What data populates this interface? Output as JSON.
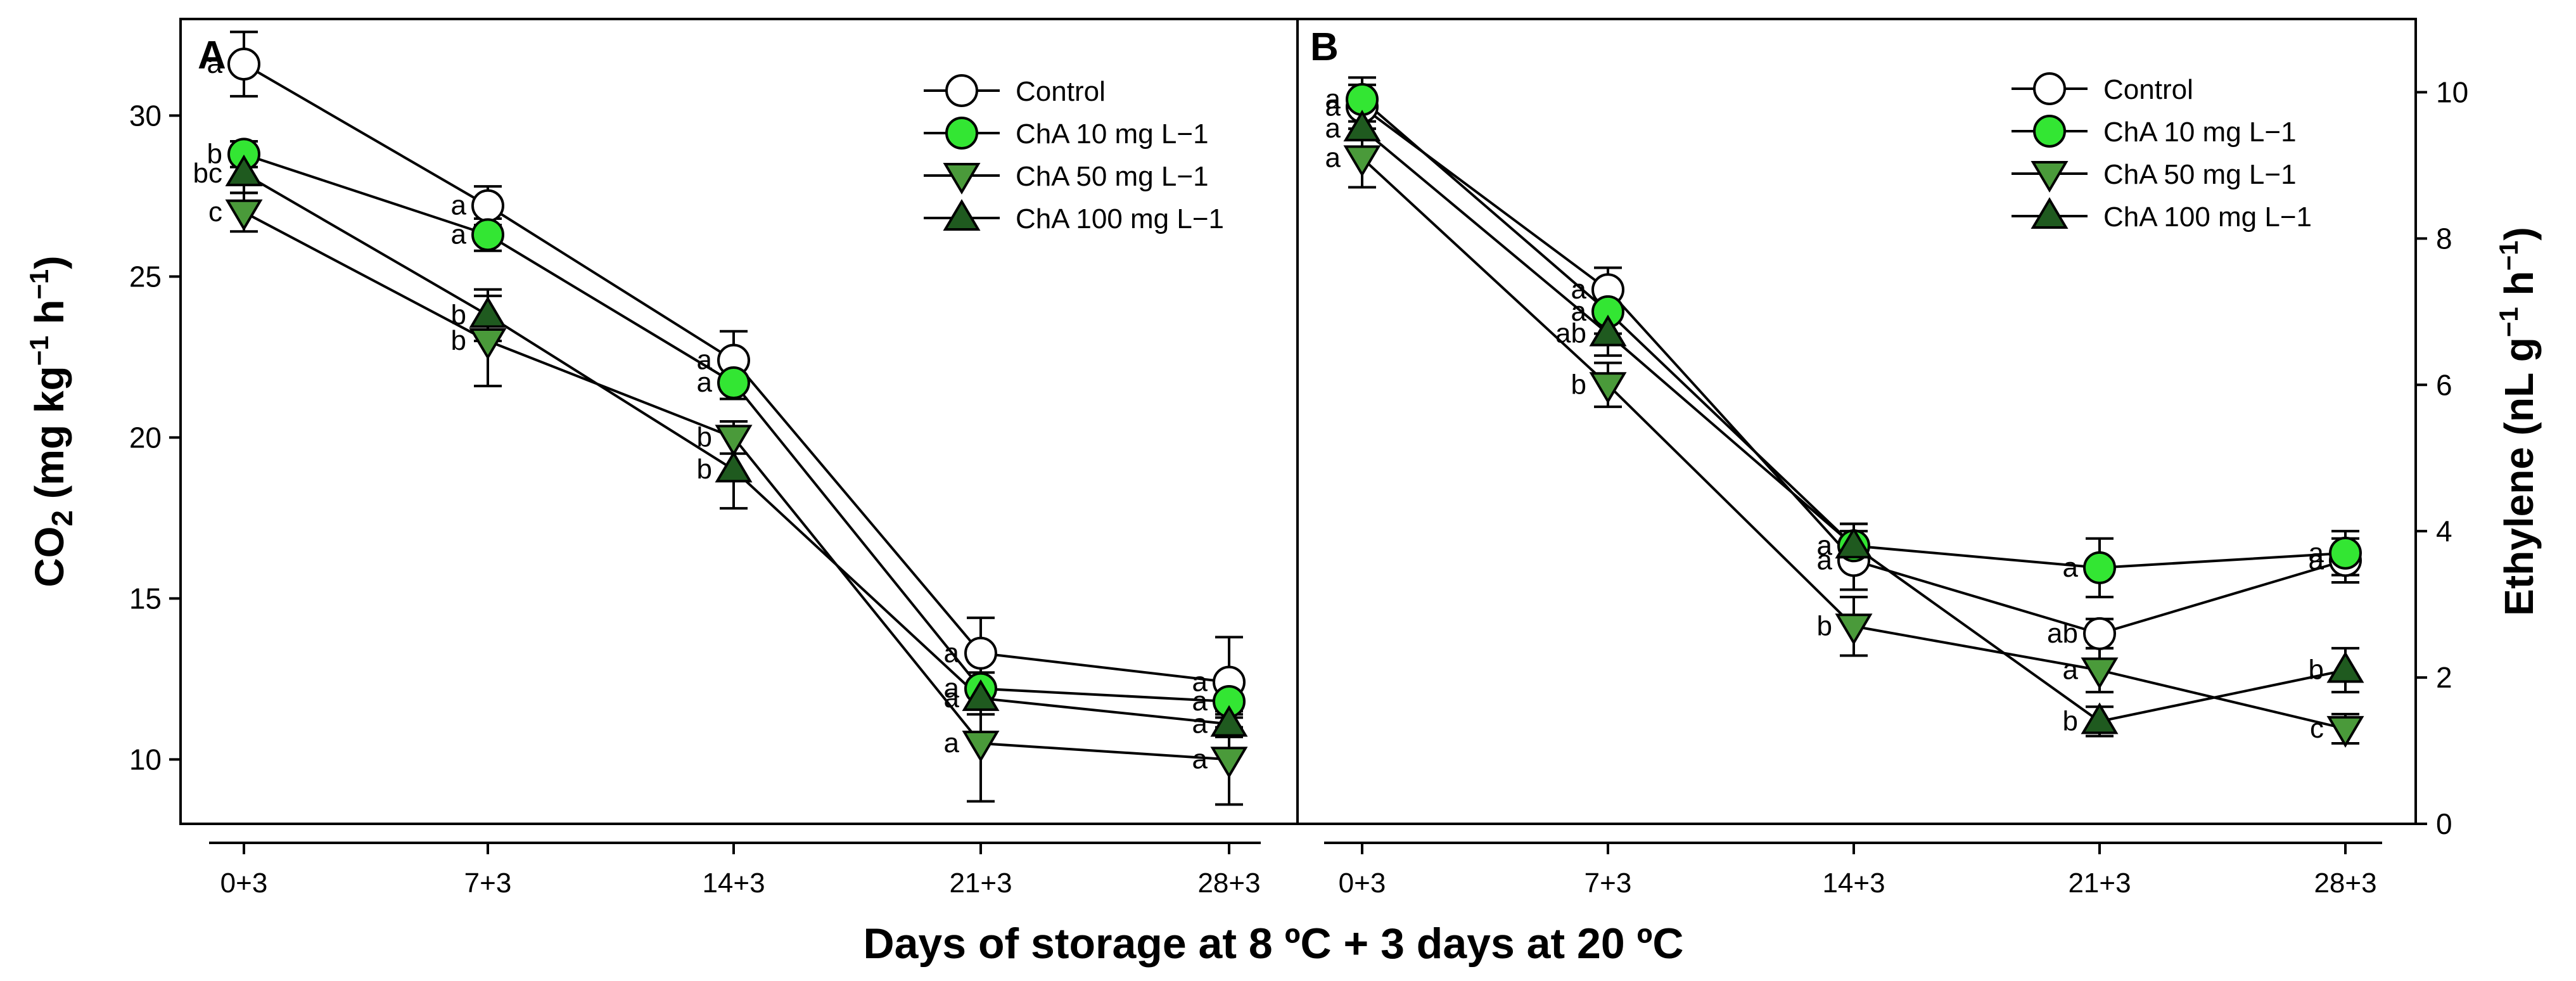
{
  "figure": {
    "x_axis_title": "Days of storage at 8 ºC + 3 days at 20 ºC",
    "colors": {
      "control_fill": "#ffffff",
      "cha10_fill": "#33e633",
      "cha50_fill": "#4a9a3a",
      "cha100_fill": "#1f5a1f",
      "line": "#000000"
    }
  },
  "chart_data": [
    {
      "panel": "A",
      "type": "line",
      "title": "",
      "xlabel": "Days of storage at 8 ºC + 3 days at 20 ºC",
      "ylabel": "CO2 (mg kg−1 h−1)",
      "ylabel_parts": {
        "main": "CO",
        "sub": "2",
        "units_a": " (mg kg",
        "sup1": "−1",
        "units_b": " h",
        "sup2": "−1",
        "units_c": ")"
      },
      "categories": [
        "0+3",
        "7+3",
        "14+3",
        "21+3",
        "28+3"
      ],
      "ylim": [
        8,
        33
      ],
      "yticks": [
        10,
        15,
        20,
        25,
        30
      ],
      "y_axis_side": "left",
      "legend_position": "top-right",
      "series": [
        {
          "name": "Control",
          "marker": "circle-open",
          "values": [
            31.6,
            27.2,
            22.4,
            13.3,
            12.4
          ],
          "errors": [
            1.0,
            0.6,
            0.9,
            1.1,
            1.4
          ],
          "letters": [
            "a",
            "a",
            "a",
            "a",
            "a"
          ]
        },
        {
          "name": "ChA 10 mg L−1",
          "marker": "circle-filled",
          "values": [
            28.8,
            26.3,
            21.7,
            12.2,
            11.8
          ],
          "errors": [
            0.4,
            0.5,
            0.5,
            0.5,
            0.5
          ],
          "letters": [
            "b",
            "a",
            "a",
            "a",
            "a"
          ]
        },
        {
          "name": "ChA 50 mg L−1",
          "marker": "triangle-down",
          "values": [
            27.0,
            23.0,
            20.0,
            10.5,
            10.0
          ],
          "errors": [
            0.6,
            1.4,
            0.5,
            1.8,
            1.4
          ],
          "letters": [
            "c",
            "b",
            "b",
            "a",
            "a"
          ]
        },
        {
          "name": "ChA 100 mg L−1",
          "marker": "triangle-up",
          "values": [
            28.2,
            23.8,
            19.0,
            11.9,
            11.1
          ],
          "errors": [
            0.6,
            0.8,
            1.2,
            0.5,
            0.4
          ],
          "letters": [
            "bc",
            "b",
            "b",
            "a",
            "a"
          ]
        }
      ]
    },
    {
      "panel": "B",
      "type": "line",
      "title": "",
      "xlabel": "Days of storage at 8 ºC + 3 days at 20 ºC",
      "ylabel": "Ethylene (nL g−1 h−1)",
      "ylabel_parts": {
        "main": "Ethylene (nL g",
        "sup1": "−1",
        "units_b": " h",
        "sup2": "−1",
        "units_c": ")"
      },
      "categories": [
        "0+3",
        "7+3",
        "14+3",
        "21+3",
        "28+3"
      ],
      "ylim": [
        0,
        11
      ],
      "yticks": [
        0,
        2,
        4,
        6,
        8,
        10
      ],
      "y_axis_side": "right",
      "legend_position": "top-right",
      "series": [
        {
          "name": "Control",
          "marker": "circle-open",
          "values": [
            9.8,
            7.3,
            3.6,
            2.6,
            3.6
          ],
          "errors": [
            0.3,
            0.3,
            0.4,
            0.2,
            0.3
          ],
          "letters": [
            "a",
            "a",
            "a",
            "ab",
            "a"
          ]
        },
        {
          "name": "ChA 10 mg L−1",
          "marker": "circle-filled",
          "values": [
            9.9,
            7.0,
            3.8,
            3.5,
            3.7
          ],
          "errors": [
            0.3,
            0.3,
            0.3,
            0.4,
            0.3
          ],
          "letters": [
            "a",
            "a",
            "a",
            "a",
            "a"
          ]
        },
        {
          "name": "ChA 50 mg L−1",
          "marker": "triangle-down",
          "values": [
            9.1,
            6.0,
            2.7,
            2.1,
            1.3
          ],
          "errors": [
            0.4,
            0.3,
            0.4,
            0.3,
            0.2
          ],
          "letters": [
            "a",
            "b",
            "b",
            "a",
            "c"
          ]
        },
        {
          "name": "ChA 100 mg L−1",
          "marker": "triangle-up",
          "values": [
            9.5,
            6.7,
            3.8,
            1.4,
            2.1
          ],
          "errors": [
            0.3,
            0.3,
            0.3,
            0.2,
            0.3
          ],
          "letters": [
            "a",
            "ab",
            "a",
            "b",
            "b"
          ]
        }
      ]
    }
  ]
}
